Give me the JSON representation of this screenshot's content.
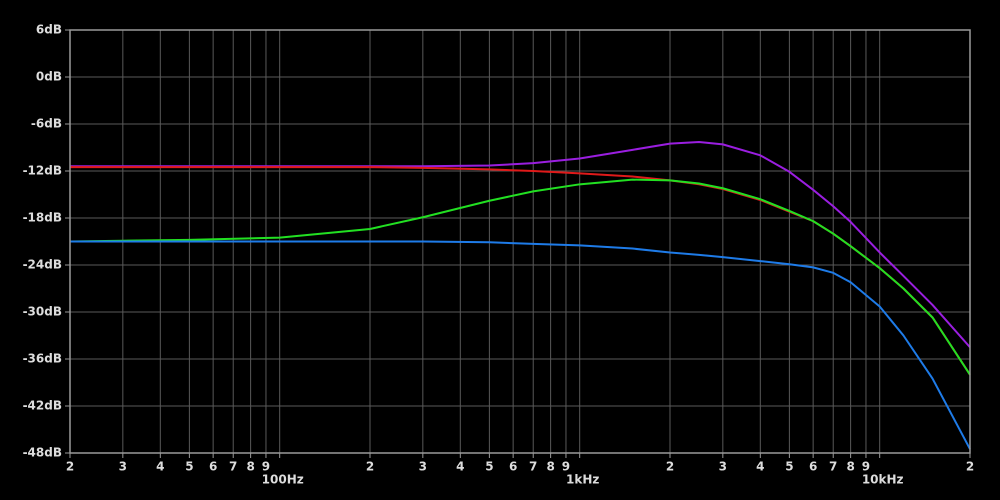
{
  "chart_data": {
    "type": "line",
    "xscale": "log",
    "grid": true,
    "xlim": [
      20,
      20000
    ],
    "ylim": [
      -48,
      6
    ],
    "xticks": [
      {
        "value": 20,
        "label": "2"
      },
      {
        "value": 30,
        "label": "3"
      },
      {
        "value": 40,
        "label": "4"
      },
      {
        "value": 50,
        "label": "5"
      },
      {
        "value": 60,
        "label": "6"
      },
      {
        "value": 70,
        "label": "7"
      },
      {
        "value": 80,
        "label": "8"
      },
      {
        "value": 90,
        "label": "9"
      },
      {
        "value": 100,
        "label": "100Hz"
      },
      {
        "value": 200,
        "label": "2"
      },
      {
        "value": 300,
        "label": "3"
      },
      {
        "value": 400,
        "label": "4"
      },
      {
        "value": 500,
        "label": "5"
      },
      {
        "value": 600,
        "label": "6"
      },
      {
        "value": 700,
        "label": "7"
      },
      {
        "value": 800,
        "label": "8"
      },
      {
        "value": 900,
        "label": "9"
      },
      {
        "value": 1000,
        "label": "1kHz"
      },
      {
        "value": 2000,
        "label": "2"
      },
      {
        "value": 3000,
        "label": "3"
      },
      {
        "value": 4000,
        "label": "4"
      },
      {
        "value": 5000,
        "label": "5"
      },
      {
        "value": 6000,
        "label": "6"
      },
      {
        "value": 7000,
        "label": "7"
      },
      {
        "value": 8000,
        "label": "8"
      },
      {
        "value": 9000,
        "label": "9"
      },
      {
        "value": 10000,
        "label": "10kHz"
      },
      {
        "value": 20000,
        "label": "2"
      }
    ],
    "yticks": [
      {
        "value": 6,
        "label": "6dB"
      },
      {
        "value": 0,
        "label": "0dB"
      },
      {
        "value": -6,
        "label": "-6dB"
      },
      {
        "value": -12,
        "label": "-12dB"
      },
      {
        "value": -18,
        "label": "-18dB"
      },
      {
        "value": -24,
        "label": "-24dB"
      },
      {
        "value": -30,
        "label": "-30dB"
      },
      {
        "value": -36,
        "label": "-36dB"
      },
      {
        "value": -42,
        "label": "-42dB"
      },
      {
        "value": -48,
        "label": "-48dB"
      }
    ],
    "x": [
      20,
      30,
      50,
      100,
      200,
      300,
      500,
      700,
      1000,
      1500,
      2000,
      2500,
      3000,
      4000,
      5000,
      6000,
      7000,
      8000,
      10000,
      12000,
      15000,
      20000
    ],
    "series": [
      {
        "color": "#9a1ee0",
        "values": [
          -11.4,
          -11.4,
          -11.4,
          -11.4,
          -11.4,
          -11.4,
          -11.3,
          -11.0,
          -10.4,
          -9.3,
          -8.5,
          -8.3,
          -8.6,
          -10.0,
          -12.1,
          -14.4,
          -16.5,
          -18.5,
          -22.4,
          -25.4,
          -29.1,
          -34.5
        ]
      },
      {
        "color": "#e01a1a",
        "values": [
          -11.5,
          -11.5,
          -11.5,
          -11.5,
          -11.5,
          -11.6,
          -11.8,
          -12.0,
          -12.3,
          -12.7,
          -13.2,
          -13.7,
          -14.3,
          -15.7,
          -17.2,
          -18.4,
          -20.0,
          -21.6,
          -24.4,
          -27.0,
          -30.7,
          -38.0
        ]
      },
      {
        "color": "#22e022",
        "values": [
          -21.0,
          -20.9,
          -20.8,
          -20.5,
          -19.4,
          -17.9,
          -15.8,
          -14.6,
          -13.7,
          -13.1,
          -13.2,
          -13.6,
          -14.2,
          -15.6,
          -17.1,
          -18.4,
          -20.0,
          -21.6,
          -24.4,
          -27.0,
          -30.7,
          -38.0
        ]
      },
      {
        "color": "#1e7be8",
        "values": [
          -21.0,
          -21.0,
          -21.0,
          -21.0,
          -21.0,
          -21.0,
          -21.1,
          -21.3,
          -21.5,
          -21.9,
          -22.4,
          -22.7,
          -23.0,
          -23.5,
          -23.9,
          -24.3,
          -25.0,
          -26.2,
          -29.3,
          -33.0,
          -38.5,
          -47.5
        ]
      }
    ]
  }
}
